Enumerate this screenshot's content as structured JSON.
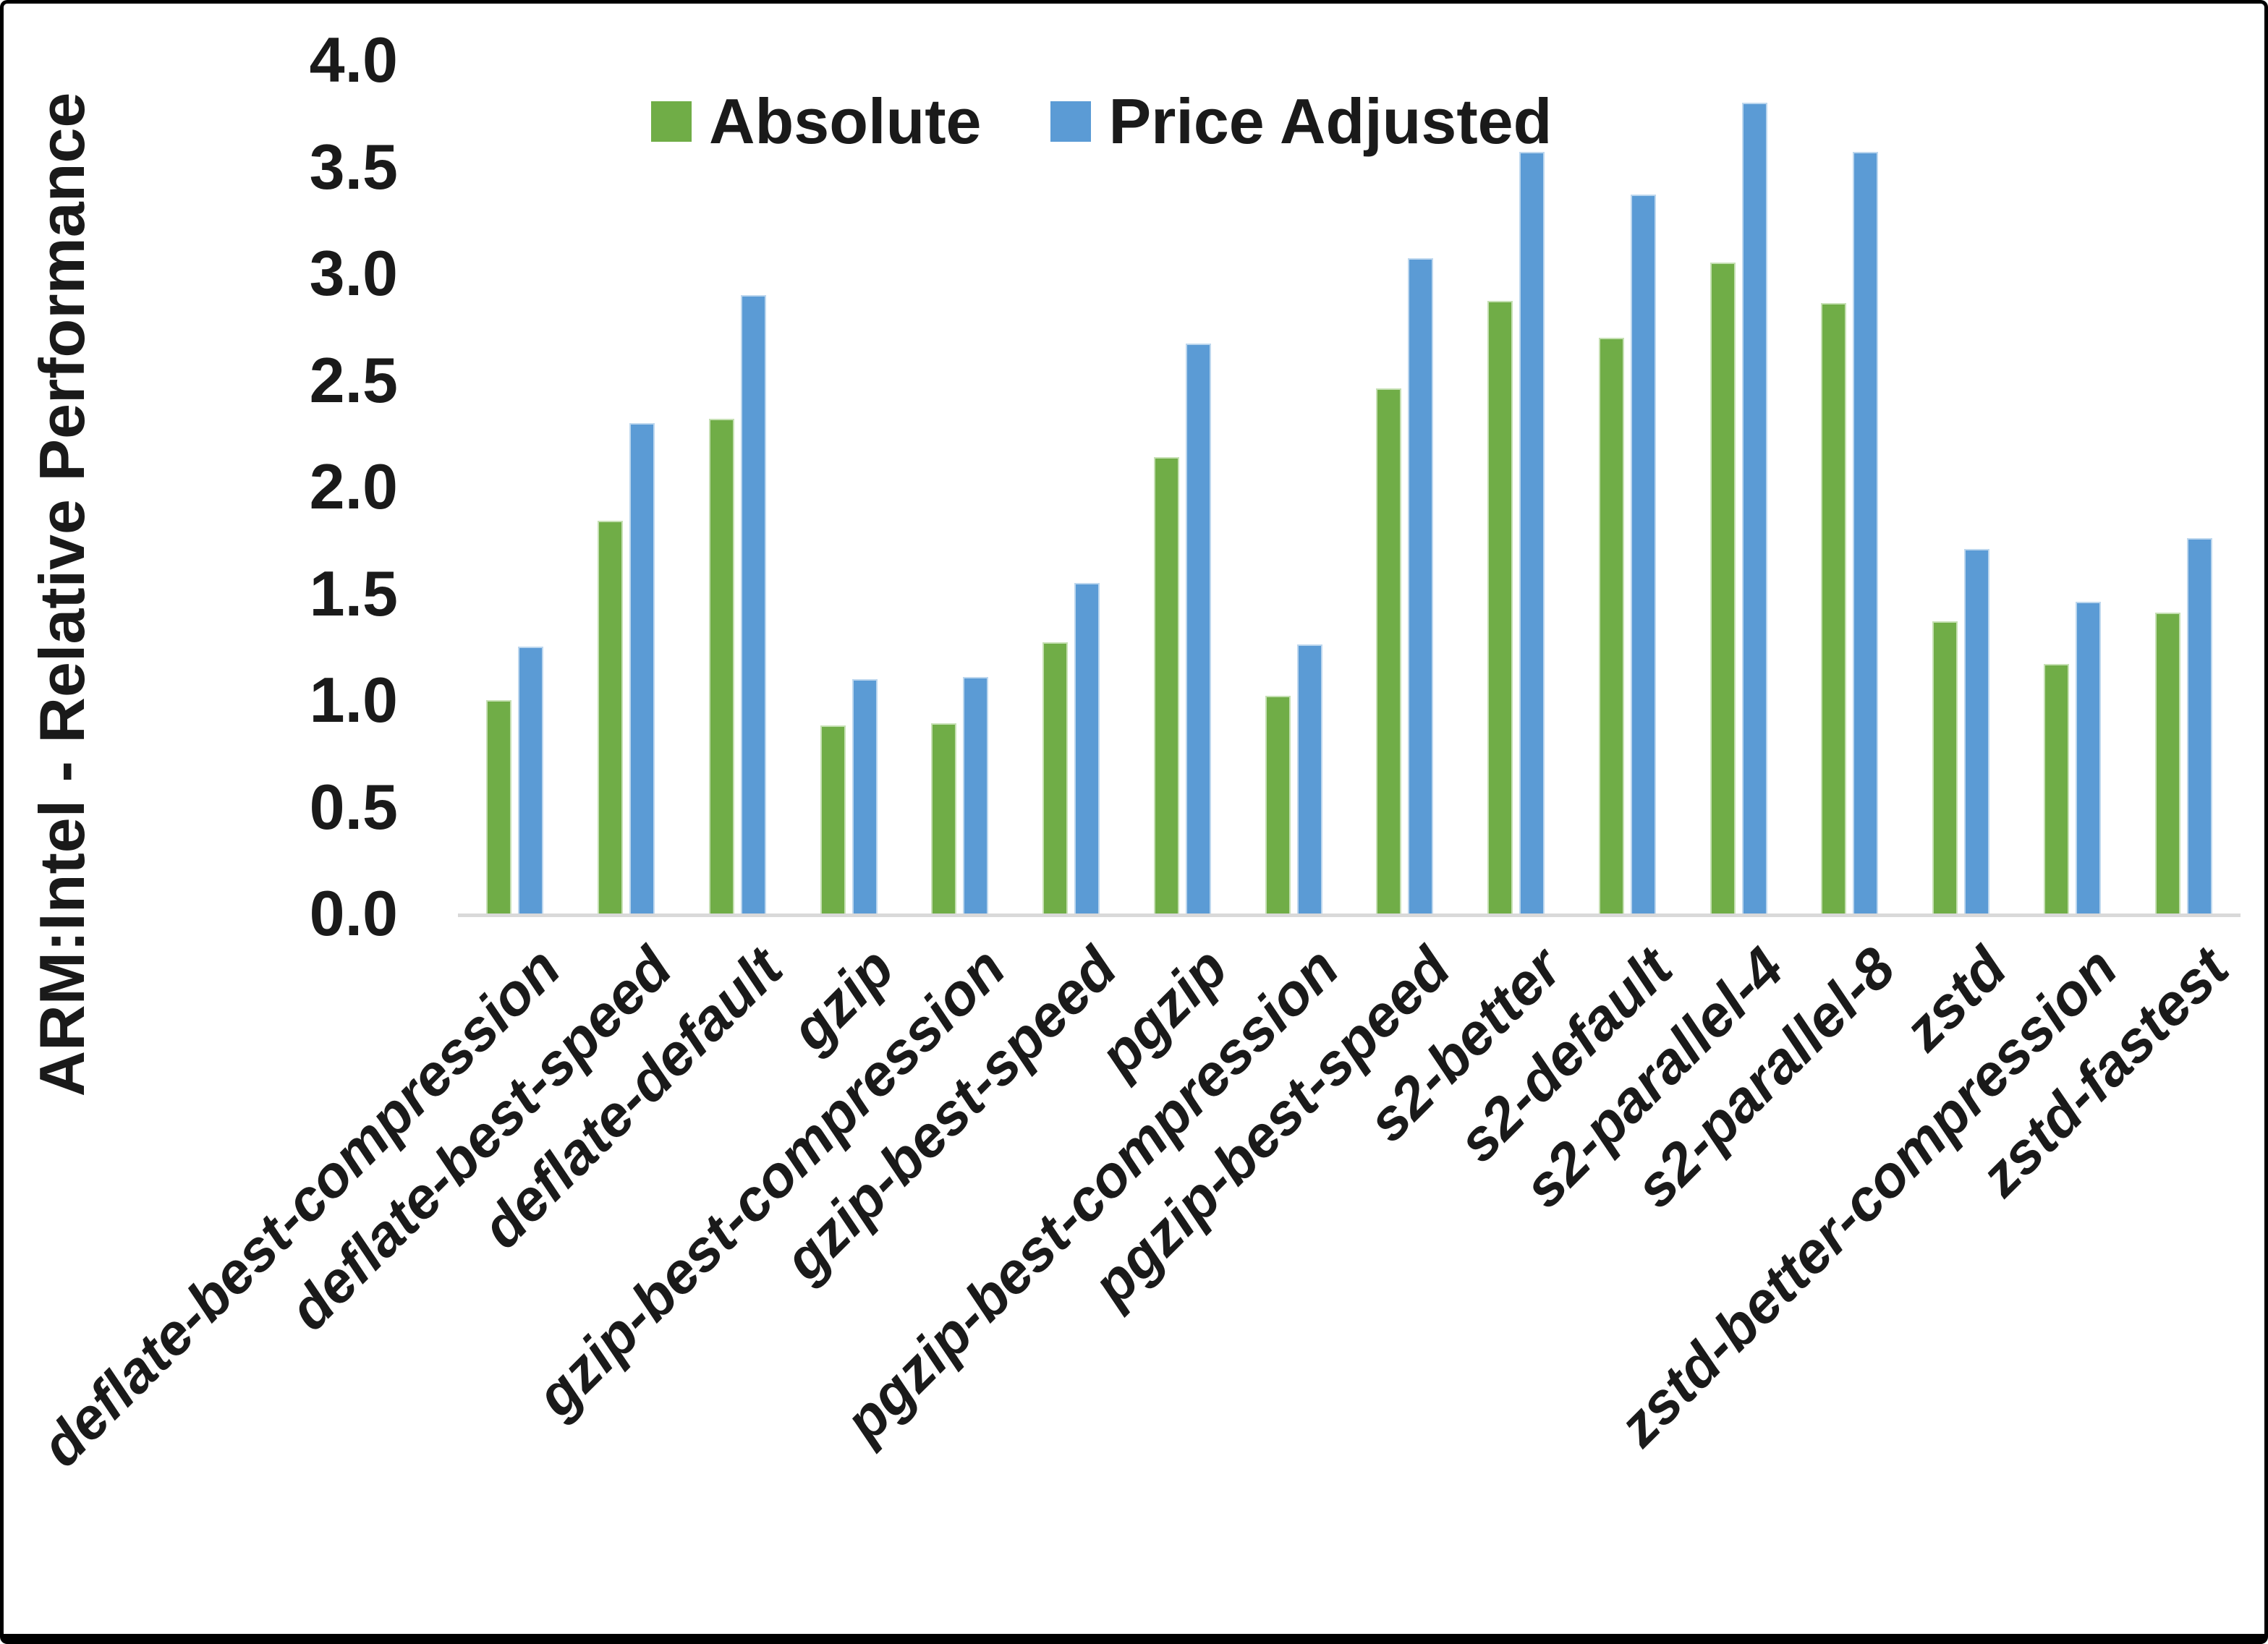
{
  "chart_data": {
    "type": "bar",
    "title": "",
    "xlabel": "",
    "ylabel": "ARM:Intel - Relative Performance",
    "ylim": [
      0.0,
      4.0
    ],
    "ytick_step": 0.5,
    "ytick_labels": [
      "0.0",
      "0.5",
      "1.0",
      "1.5",
      "2.0",
      "2.5",
      "3.0",
      "3.5",
      "4.0"
    ],
    "grid": false,
    "legend_position": "top-center",
    "categories": [
      "deflate-best-compression",
      "deflate-best-speed",
      "deflate-default",
      "gzip",
      "gzip-best-compression",
      "gzip-best-speed",
      "pgzip",
      "pgzip-best-compression",
      "pgzip-best-speed",
      "s2-better",
      "s2-default",
      "s2-parallel-4",
      "s2-parallel-8",
      "zstd",
      "zstd-better-compression",
      "zstd-fastest"
    ],
    "series": [
      {
        "name": "Absolute",
        "color": "#70AD47",
        "border_color": "#c6e0b4",
        "values": [
          1.0,
          1.84,
          2.32,
          0.88,
          0.89,
          1.27,
          2.14,
          1.02,
          2.46,
          2.87,
          2.7,
          3.05,
          2.86,
          1.37,
          1.17,
          1.41
        ]
      },
      {
        "name": "Price Adjusted",
        "color": "#5B9BD5",
        "border_color": "#bdd7ee",
        "values": [
          1.25,
          2.3,
          2.9,
          1.1,
          1.11,
          1.55,
          2.67,
          1.26,
          3.07,
          3.57,
          3.37,
          3.8,
          3.57,
          1.71,
          1.46,
          1.76
        ]
      }
    ]
  },
  "colors": {
    "axis_line": "#d9d9d9",
    "text": "#1a1a1a",
    "frame": "#000000",
    "background": "#ffffff"
  }
}
